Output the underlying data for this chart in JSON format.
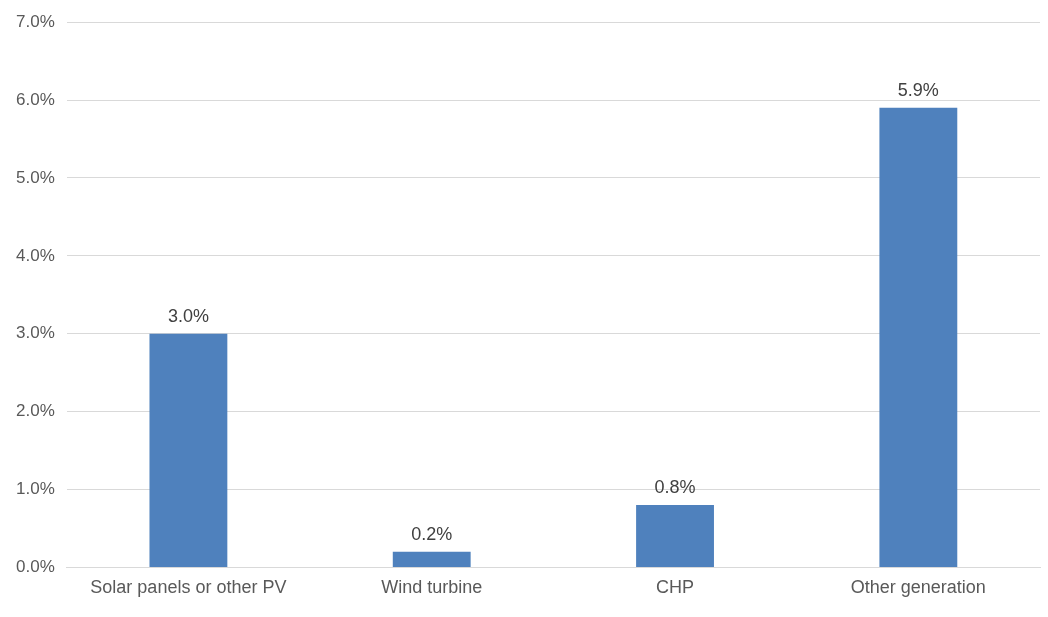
{
  "chart_data": {
    "type": "bar",
    "categories": [
      "Solar panels or other PV",
      "Wind turbine",
      "CHP",
      "Other generation"
    ],
    "values": [
      3.0,
      0.2,
      0.8,
      5.9
    ],
    "value_labels": [
      "3.0%",
      "0.2%",
      "0.8%",
      "5.9%"
    ],
    "color": "#4f81bd",
    "ylim": [
      0,
      7
    ],
    "yticks": [
      {
        "value": 0,
        "label": "0.0%"
      },
      {
        "value": 1,
        "label": "1.0%"
      },
      {
        "value": 2,
        "label": "2.0%"
      },
      {
        "value": 3,
        "label": "3.0%"
      },
      {
        "value": 4,
        "label": "4.0%"
      },
      {
        "value": 5,
        "label": "5.0%"
      },
      {
        "value": 6,
        "label": "6.0%"
      },
      {
        "value": 7,
        "label": "7.0%"
      }
    ],
    "grid": "y",
    "legend": false
  }
}
